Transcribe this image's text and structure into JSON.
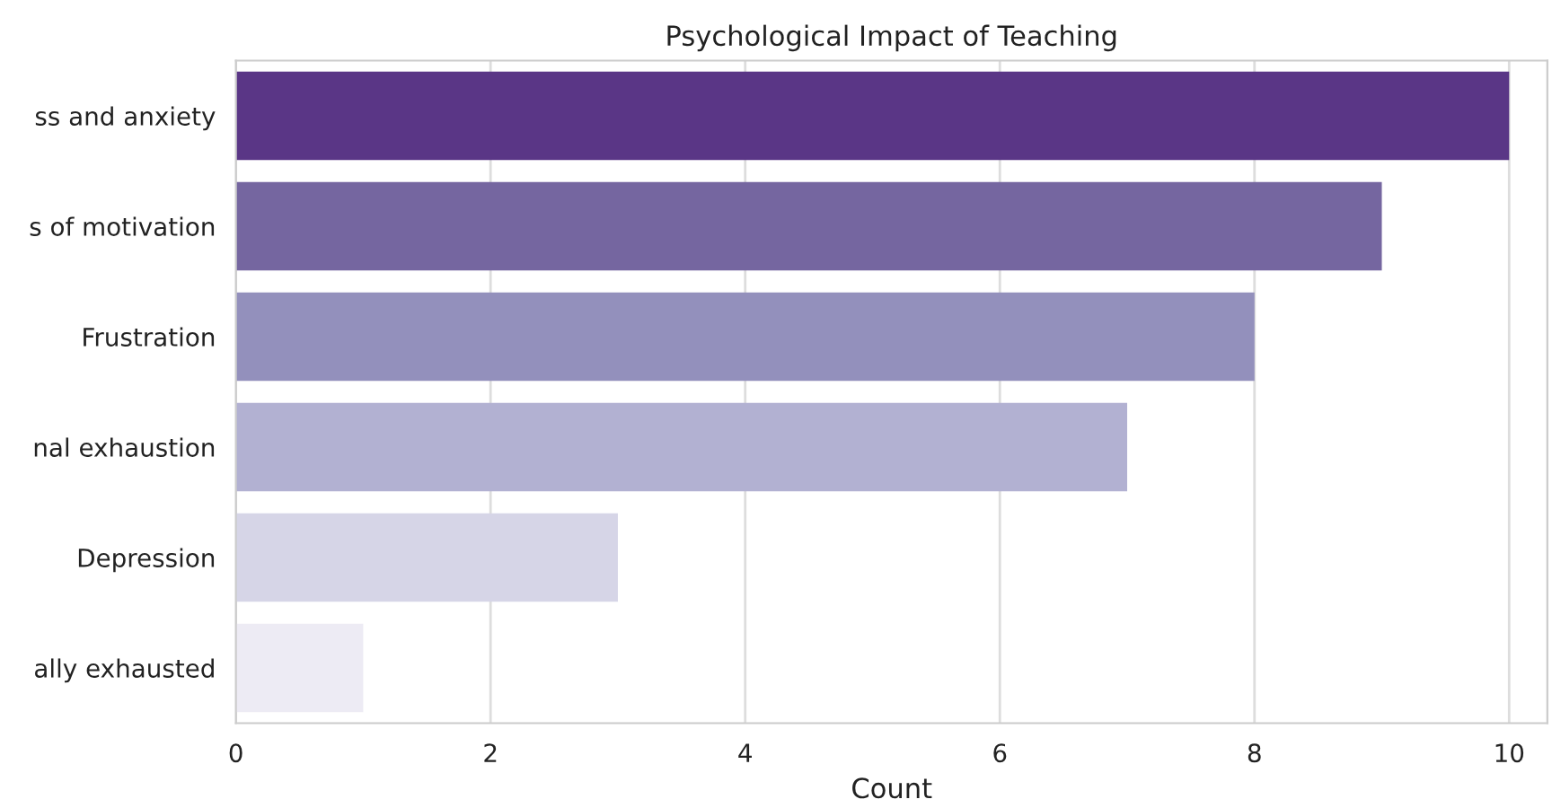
{
  "chart_data": {
    "type": "bar",
    "orientation": "horizontal",
    "title": "Psychological Impact of Teaching",
    "xlabel": "Count",
    "categories": [
      "ss and anxiety",
      "s of motivation",
      "Frustration",
      "nal exhaustion",
      "Depression",
      "ally exhausted"
    ],
    "values": [
      10,
      9,
      8,
      7,
      3,
      1
    ],
    "colors": [
      "#5a3686",
      "#7566a0",
      "#9390bc",
      "#b2b1d2",
      "#d6d5e7",
      "#edebf4"
    ],
    "xlim": [
      0,
      10.3
    ],
    "xticks": [
      0,
      2,
      4,
      6,
      8,
      10
    ],
    "grid": "x"
  }
}
